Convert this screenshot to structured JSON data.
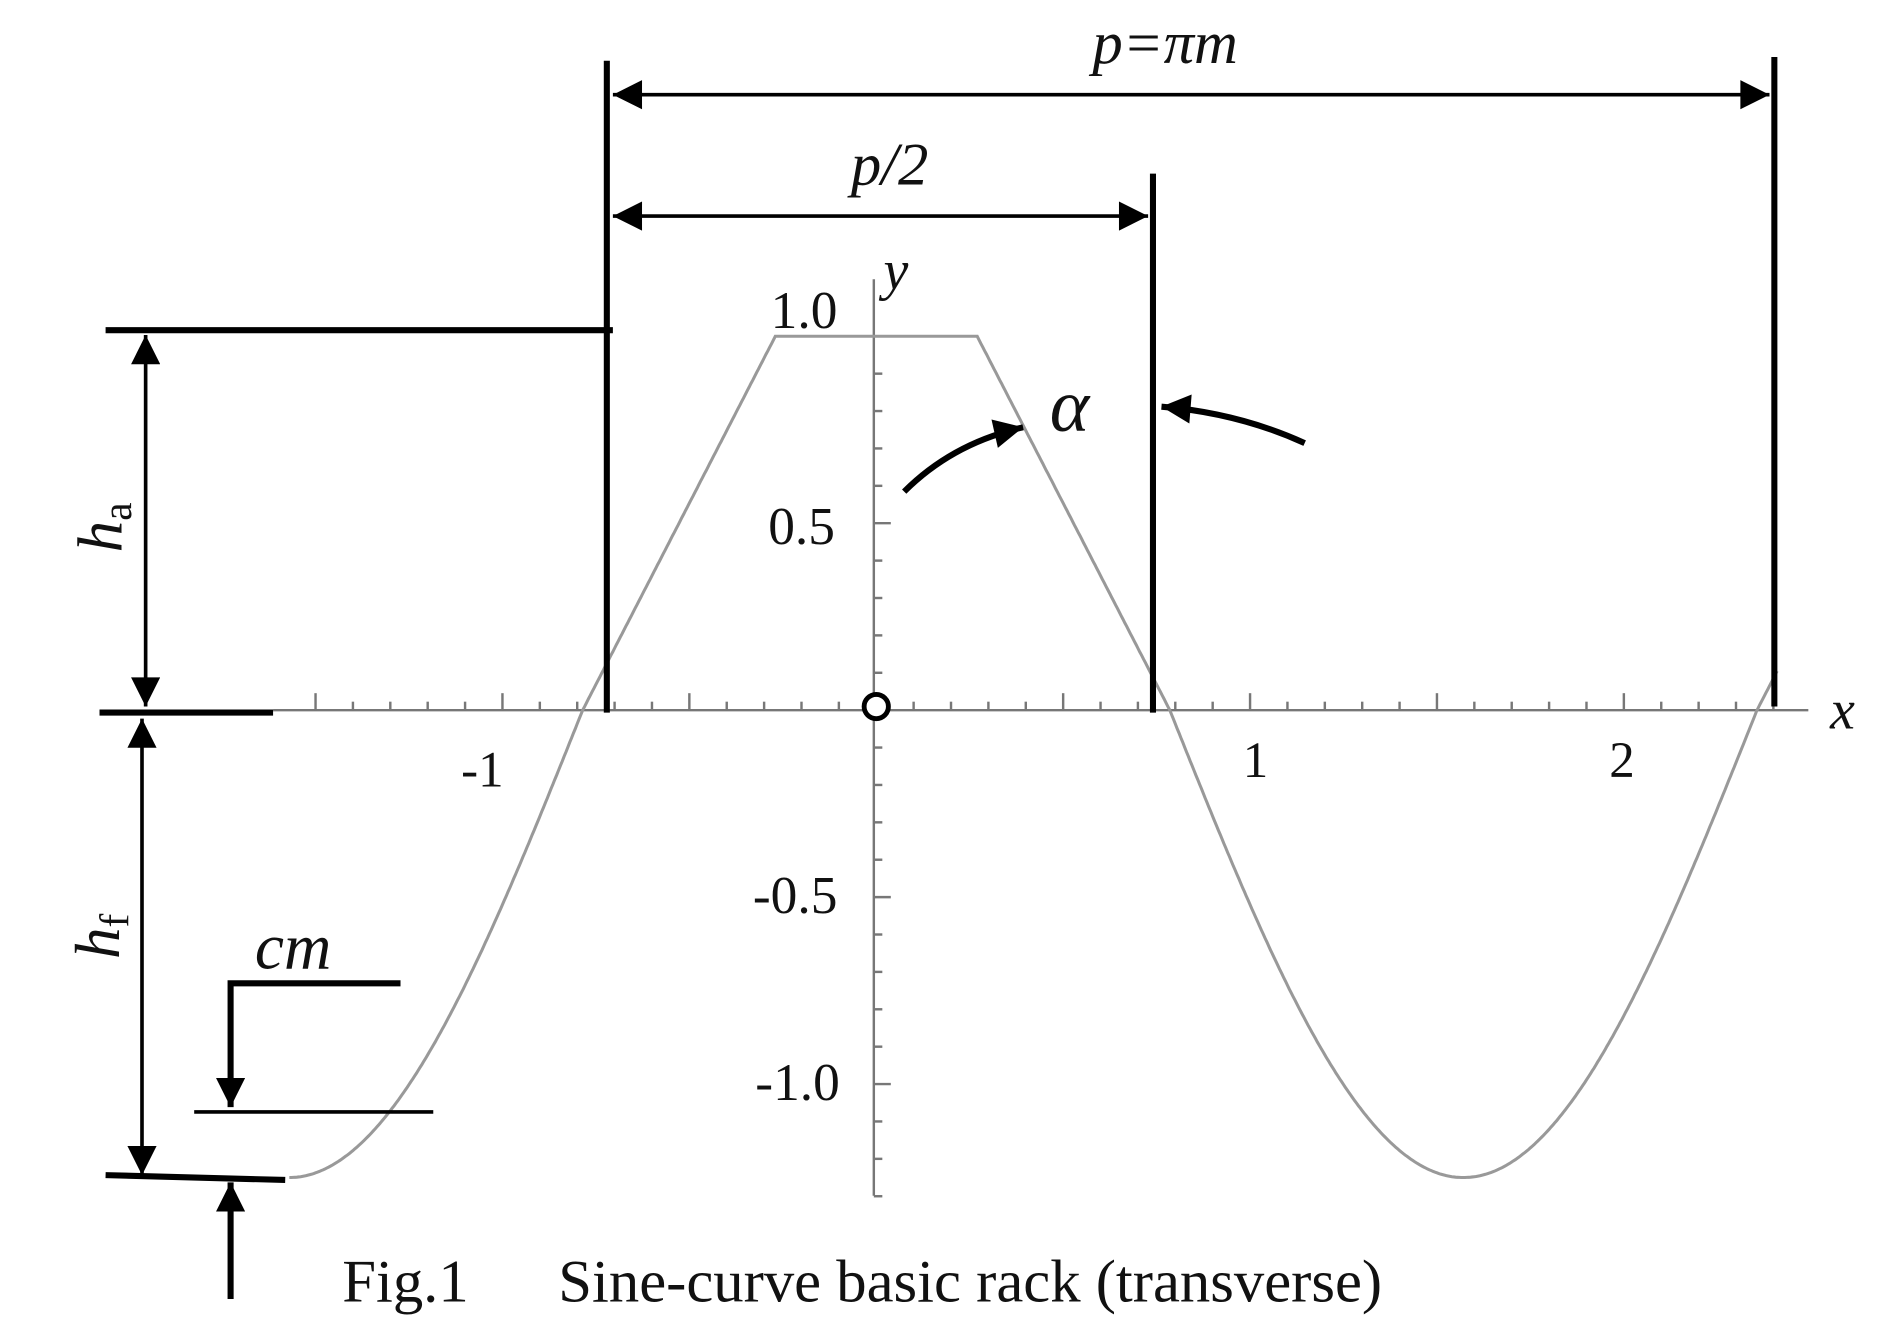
{
  "figure": {
    "dimensions": {
      "pitch": "p=πm",
      "half_pitch": "p/2",
      "pressure_angle": "α",
      "addendum": {
        "symbol": "h",
        "subscript": "a"
      },
      "dedendum": {
        "symbol": "h",
        "subscript": "f"
      },
      "clearance": "cm"
    },
    "axes": {
      "x_label": "x",
      "y_label": "y",
      "x_tick_labels": [
        "-1",
        "1",
        "2"
      ],
      "y_tick_labels": [
        "1.0",
        "0.5",
        "-0.5",
        "-1.0"
      ]
    },
    "caption": {
      "number": "Fig.1",
      "text": "Sine-curve basic rack (transverse)"
    }
  }
}
